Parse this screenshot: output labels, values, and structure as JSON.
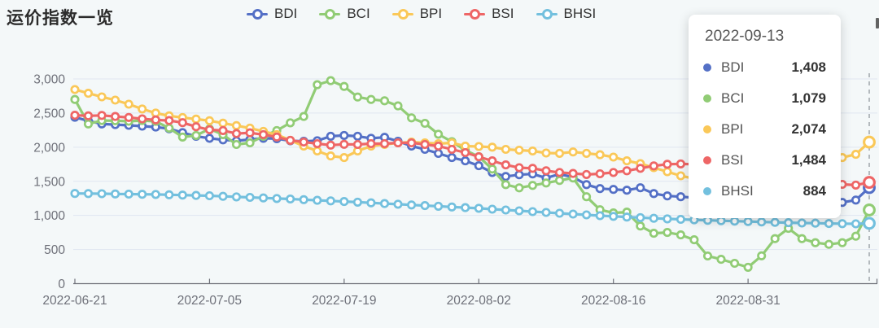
{
  "header": {
    "title": "运价指数一览"
  },
  "legend": {
    "items": [
      {
        "label": "BDI",
        "color": "#5470c6"
      },
      {
        "label": "BCI",
        "color": "#91cc75"
      },
      {
        "label": "BPI",
        "color": "#fac858"
      },
      {
        "label": "BSI",
        "color": "#ee6666"
      },
      {
        "label": "BHSI",
        "color": "#73c0de"
      }
    ]
  },
  "tooltip": {
    "title": "2022-09-13",
    "items": [
      {
        "label": "BDI",
        "value": "1,408",
        "color": "#5470c6"
      },
      {
        "label": "BCI",
        "value": "1,079",
        "color": "#91cc75"
      },
      {
        "label": "BPI",
        "value": "2,074",
        "color": "#fac858"
      },
      {
        "label": "BSI",
        "value": "1,484",
        "color": "#ee6666"
      },
      {
        "label": "BHSI",
        "value": "884",
        "color": "#73c0de"
      }
    ]
  },
  "colors": {
    "background": "#f4f8f9",
    "title_text": "#2c2c2c",
    "legend_text": "#333333",
    "axis_label": "#6e7079",
    "axis_line": "#6e7079",
    "grid_line": "#e0e6f1",
    "pointer_line": "#9aa0a6",
    "tooltip_title": "#575757",
    "tooltip_label": "#545454",
    "tooltip_value": "#333333",
    "marker_fill": "#ffffff"
  },
  "chart_data": {
    "type": "line",
    "title": "运价指数一览",
    "xlabel": "",
    "ylabel": "",
    "ylim": [
      0,
      3000
    ],
    "grid": true,
    "legend_position": "top",
    "hover_index": 59,
    "y_ticks": [
      0,
      500,
      1000,
      1500,
      2000,
      2500,
      3000
    ],
    "y_tick_labels": [
      "0",
      "500",
      "1,000",
      "1,500",
      "2,000",
      "2,500",
      "3,000"
    ],
    "x_tick_indices": [
      0,
      10,
      20,
      30,
      40,
      50
    ],
    "x_tick_labels": [
      "2022-06-21",
      "2022-07-05",
      "2022-07-19",
      "2022-08-02",
      "2022-08-16",
      "2022-08-31"
    ],
    "x": [
      "2022-06-21",
      "2022-06-22",
      "2022-06-23",
      "2022-06-24",
      "2022-06-27",
      "2022-06-28",
      "2022-06-29",
      "2022-06-30",
      "2022-07-01",
      "2022-07-04",
      "2022-07-05",
      "2022-07-06",
      "2022-07-07",
      "2022-07-08",
      "2022-07-11",
      "2022-07-12",
      "2022-07-13",
      "2022-07-14",
      "2022-07-15",
      "2022-07-18",
      "2022-07-19",
      "2022-07-20",
      "2022-07-21",
      "2022-07-22",
      "2022-07-25",
      "2022-07-26",
      "2022-07-27",
      "2022-07-28",
      "2022-07-29",
      "2022-08-01",
      "2022-08-02",
      "2022-08-03",
      "2022-08-04",
      "2022-08-05",
      "2022-08-08",
      "2022-08-09",
      "2022-08-10",
      "2022-08-11",
      "2022-08-12",
      "2022-08-15",
      "2022-08-16",
      "2022-08-17",
      "2022-08-18",
      "2022-08-19",
      "2022-08-22",
      "2022-08-23",
      "2022-08-24",
      "2022-08-25",
      "2022-08-26",
      "2022-08-30",
      "2022-08-31",
      "2022-09-01",
      "2022-09-02",
      "2022-09-05",
      "2022-09-06",
      "2022-09-07",
      "2022-09-08",
      "2022-09-09",
      "2022-09-12",
      "2022-09-13"
    ],
    "series": [
      {
        "name": "BDI",
        "color": "#5470c6",
        "values": [
          2438,
          2387,
          2340,
          2331,
          2320,
          2308,
          2295,
          2270,
          2214,
          2160,
          2130,
          2108,
          2094,
          2112,
          2130,
          2125,
          2095,
          2086,
          2095,
          2160,
          2172,
          2160,
          2131,
          2145,
          2088,
          2016,
          1968,
          1908,
          1848,
          1800,
          1728,
          1630,
          1571,
          1596,
          1608,
          1548,
          1605,
          1560,
          1452,
          1393,
          1381,
          1369,
          1405,
          1321,
          1286,
          1274,
          1260,
          1248,
          1236,
          1225,
          1212,
          1202,
          1193,
          1185,
          1180,
          1176,
          1180,
          1190,
          1225,
          1408
        ]
      },
      {
        "name": "BCI",
        "color": "#91cc75",
        "values": [
          2700,
          2340,
          2390,
          2388,
          2380,
          2390,
          2378,
          2280,
          2148,
          2172,
          2268,
          2184,
          2040,
          2064,
          2160,
          2244,
          2357,
          2450,
          2915,
          2975,
          2890,
          2735,
          2700,
          2680,
          2605,
          2430,
          2350,
          2190,
          2080,
          1956,
          1860,
          1680,
          1452,
          1404,
          1440,
          1476,
          1512,
          1548,
          1274,
          1083,
          1036,
          1048,
          845,
          738,
          750,
          714,
          643,
          405,
          357,
          298,
          240,
          408,
          660,
          810,
          660,
          600,
          576,
          600,
          696,
          1079
        ]
      },
      {
        "name": "BPI",
        "color": "#fac858",
        "values": [
          2845,
          2790,
          2738,
          2690,
          2630,
          2560,
          2500,
          2460,
          2435,
          2412,
          2388,
          2352,
          2316,
          2280,
          2232,
          2184,
          2100,
          2016,
          1944,
          1872,
          1848,
          1944,
          2016,
          2040,
          2064,
          2076,
          2064,
          2052,
          2064,
          2016,
          2010,
          2000,
          1968,
          1956,
          1944,
          1915,
          1910,
          1930,
          1910,
          1890,
          1855,
          1800,
          1760,
          1700,
          1640,
          1580,
          1540,
          1510,
          1490,
          1480,
          1487,
          1500,
          1530,
          1580,
          1640,
          1700,
          1780,
          1848,
          1896,
          2074
        ]
      },
      {
        "name": "BSI",
        "color": "#ee6666",
        "values": [
          2468,
          2460,
          2466,
          2450,
          2436,
          2415,
          2400,
          2390,
          2360,
          2300,
          2256,
          2244,
          2200,
          2210,
          2184,
          2150,
          2100,
          2076,
          2052,
          2030,
          2042,
          2040,
          2052,
          2052,
          2064,
          2064,
          2040,
          2016,
          1968,
          1920,
          1860,
          1800,
          1740,
          1700,
          1690,
          1655,
          1630,
          1615,
          1600,
          1610,
          1630,
          1655,
          1690,
          1726,
          1750,
          1755,
          1750,
          1735,
          1712,
          1685,
          1655,
          1620,
          1585,
          1550,
          1520,
          1495,
          1472,
          1455,
          1445,
          1484
        ]
      },
      {
        "name": "BHSI",
        "color": "#73c0de",
        "values": [
          1322,
          1320,
          1318,
          1315,
          1312,
          1310,
          1307,
          1303,
          1298,
          1293,
          1288,
          1280,
          1272,
          1264,
          1256,
          1248,
          1240,
          1231,
          1222,
          1213,
          1204,
          1194,
          1184,
          1174,
          1164,
          1154,
          1144,
          1134,
          1124,
          1114,
          1104,
          1092,
          1080,
          1068,
          1056,
          1044,
          1032,
          1020,
          1008,
          996,
          986,
          976,
          967,
          958,
          950,
          942,
          935,
          928,
          922,
          916,
          910,
          904,
          898,
          893,
          889,
          886,
          882,
          879,
          877,
          884
        ]
      }
    ]
  }
}
